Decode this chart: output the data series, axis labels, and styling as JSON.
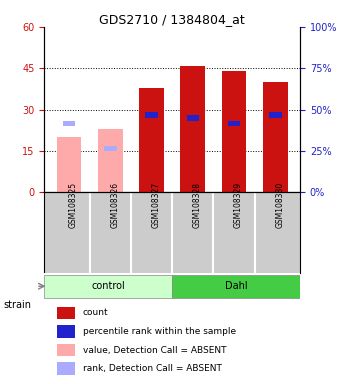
{
  "title": "GDS2710 / 1384804_at",
  "samples": [
    "GSM108325",
    "GSM108326",
    "GSM108327",
    "GSM108328",
    "GSM108329",
    "GSM108330"
  ],
  "groups": [
    "control",
    "control",
    "control",
    "Dahl",
    "Dahl",
    "Dahl"
  ],
  "red_values": [
    20,
    23,
    38,
    46,
    44,
    40
  ],
  "blue_values": [
    25,
    16,
    28,
    27,
    25,
    28
  ],
  "absent_red": [
    20,
    23,
    0,
    0,
    0,
    0
  ],
  "absent_blue": [
    25,
    16,
    0,
    0,
    0,
    0
  ],
  "ylim_left": [
    0,
    60
  ],
  "ylim_right": [
    0,
    100
  ],
  "yticks_left": [
    0,
    15,
    30,
    45,
    60
  ],
  "yticks_right": [
    0,
    25,
    50,
    75,
    100
  ],
  "ytick_labels_left": [
    "0",
    "15",
    "30",
    "45",
    "60"
  ],
  "ytick_labels_right": [
    "0%",
    "25%",
    "50%",
    "75%",
    "100%"
  ],
  "color_red": "#cc1111",
  "color_blue": "#2222cc",
  "color_pink": "#ffaaaa",
  "color_lightblue": "#aaaaff",
  "color_green_light": "#ccffcc",
  "color_green_dark": "#44cc44",
  "bar_width": 0.4,
  "group_control_label": "control",
  "group_dahl_label": "Dahl",
  "strain_label": "strain",
  "legend_items": [
    "count",
    "percentile rank within the sample",
    "value, Detection Call = ABSENT",
    "rank, Detection Call = ABSENT"
  ]
}
